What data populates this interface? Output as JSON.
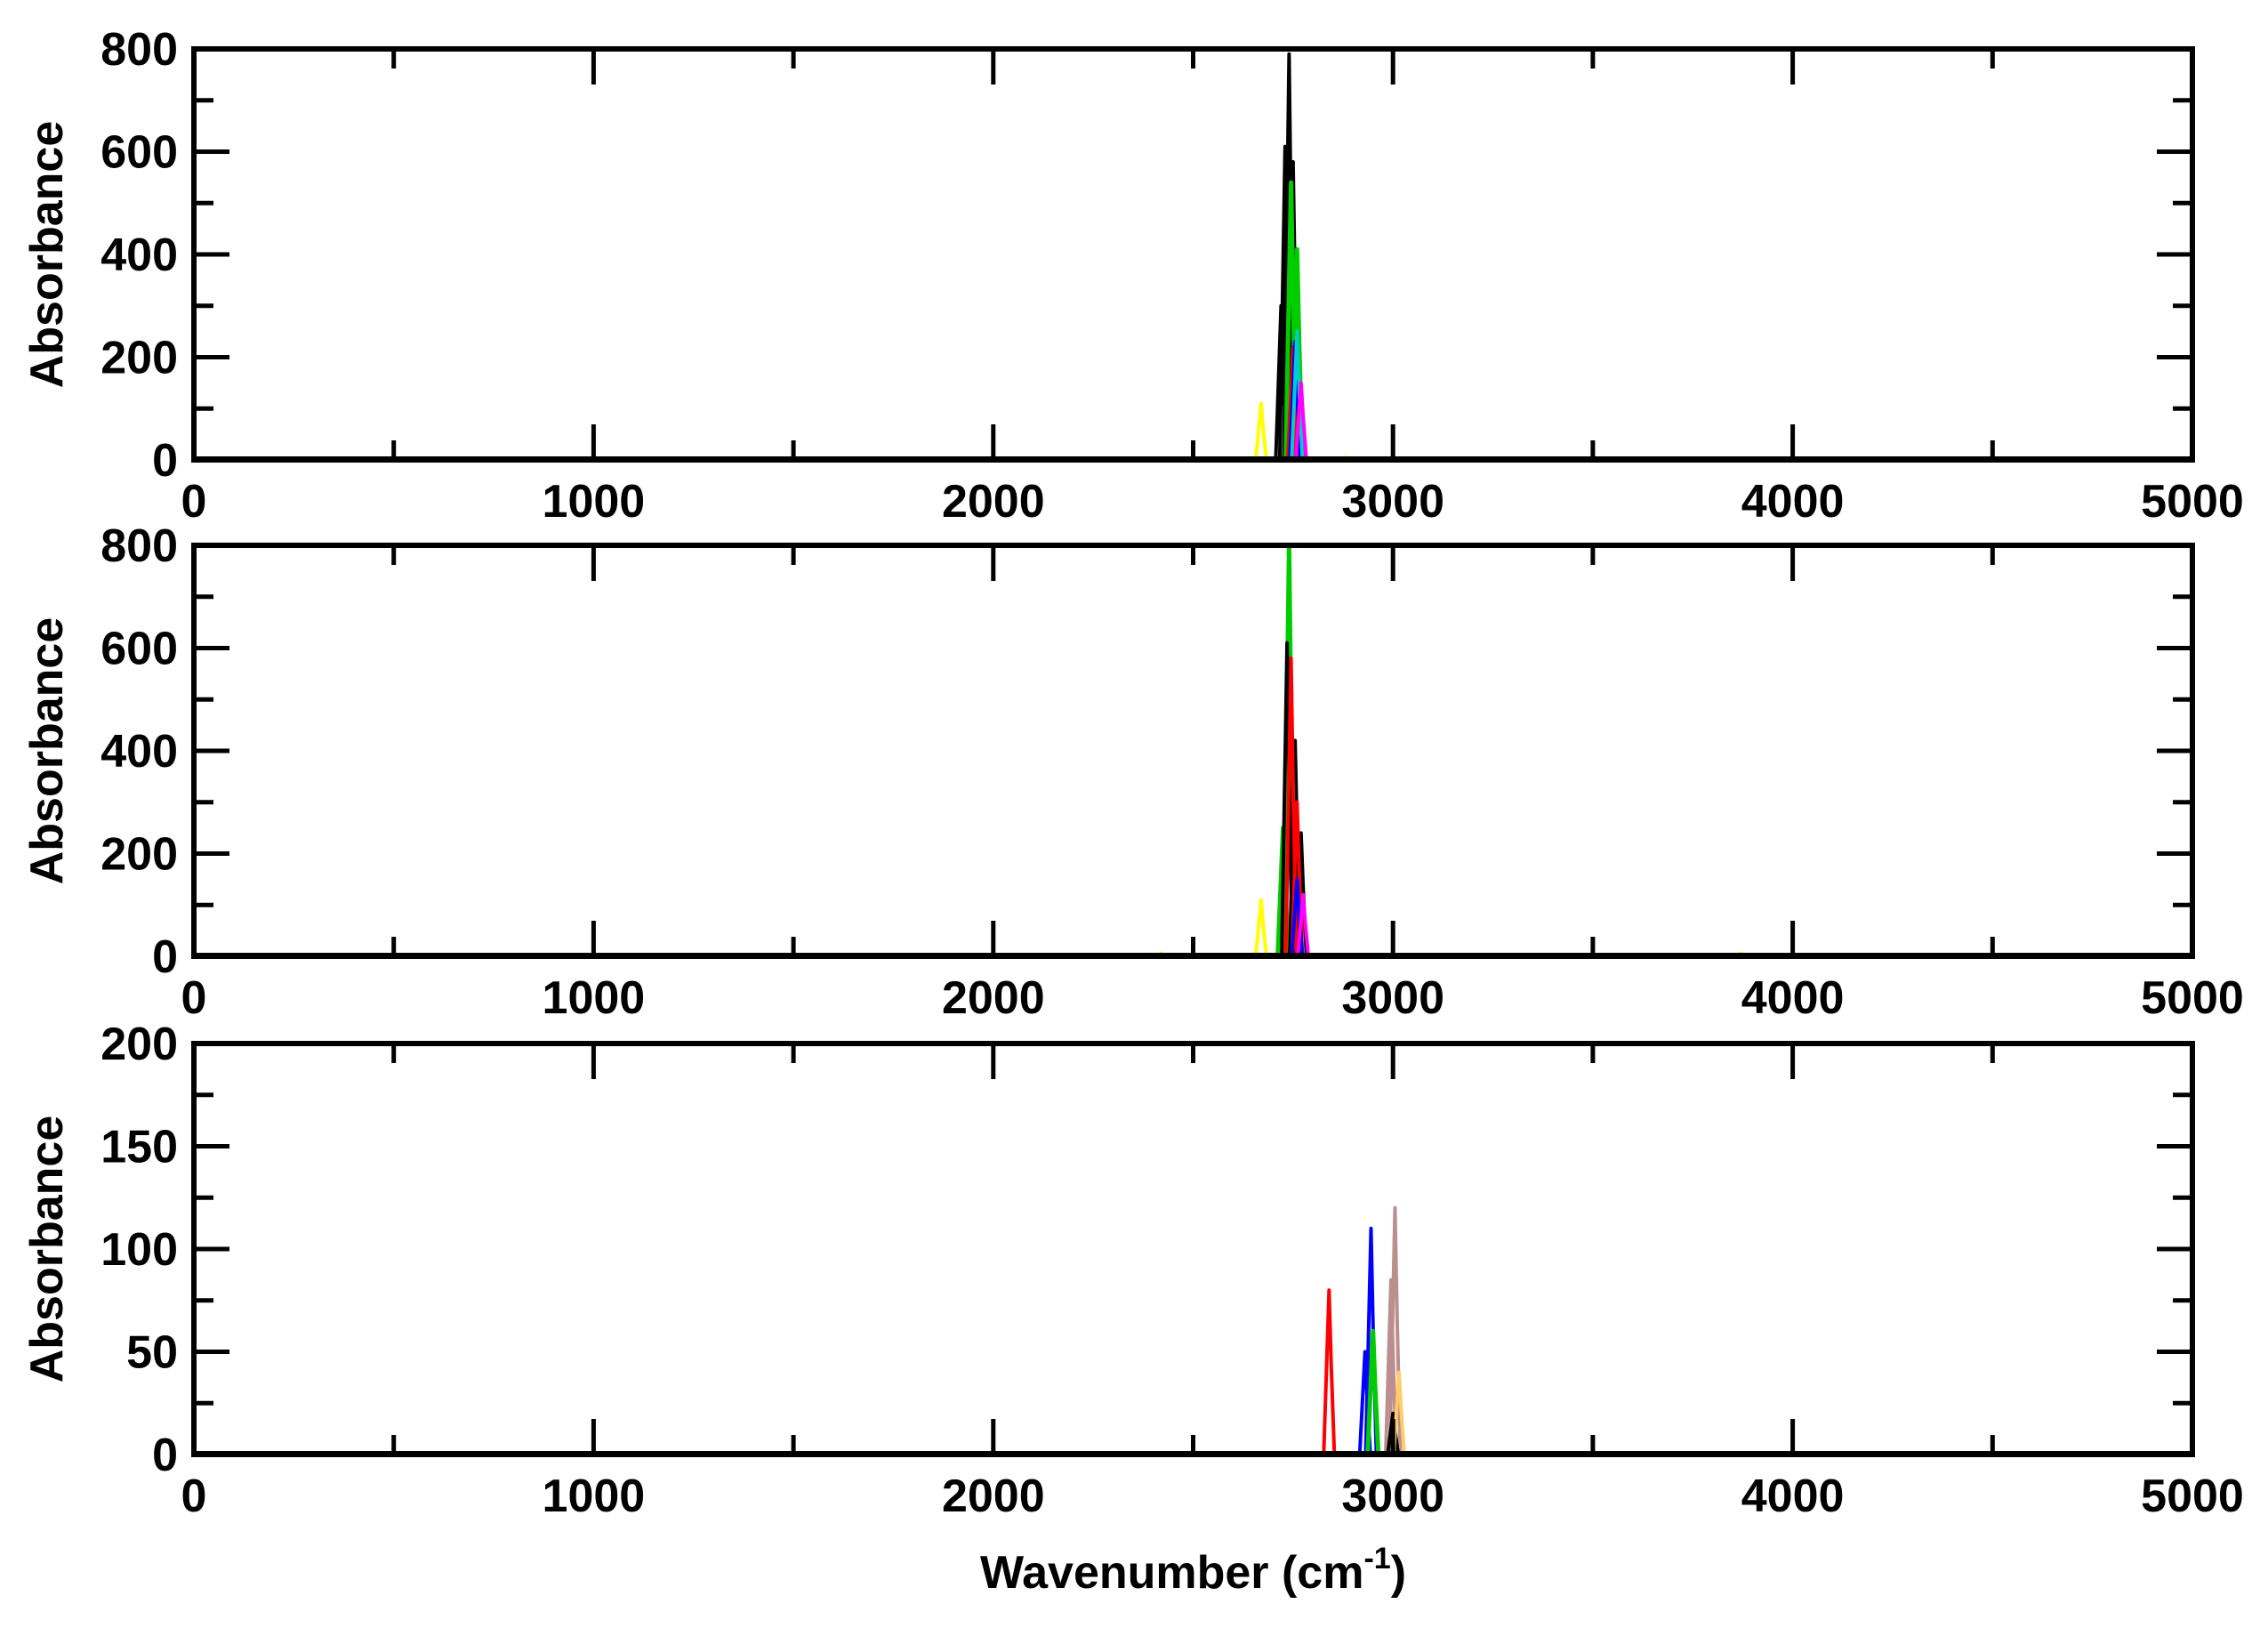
{
  "chart_data": [
    {
      "type": "line",
      "panel": "top",
      "ylabel": "Absorbance",
      "xlabel": "",
      "xlim": [
        0,
        5000
      ],
      "ylim": [
        0,
        800
      ],
      "x_ticks": [
        "0",
        "1000",
        "2000",
        "3000",
        "4000",
        "5000"
      ],
      "y_ticks": [
        "0",
        "200",
        "400",
        "600",
        "800"
      ],
      "grid": false,
      "series": [
        {
          "color": "#000000",
          "peaks": [
            [
              2720,
              300
            ],
            [
              2730,
              610
            ],
            [
              2740,
              790
            ],
            [
              2750,
              580
            ],
            [
              2765,
              200
            ]
          ]
        },
        {
          "color": "#00cc00",
          "peaks": [
            [
              2745,
              540
            ],
            [
              2760,
              410
            ]
          ]
        },
        {
          "color": "#ff0000",
          "peaks": [
            [
              2750,
              220
            ],
            [
              2765,
              120
            ]
          ]
        },
        {
          "color": "#0000ff",
          "peaks": [
            [
              2755,
              230
            ]
          ]
        },
        {
          "color": "#00cccc",
          "peaks": [
            [
              2760,
              250
            ]
          ]
        },
        {
          "color": "#ff00ff",
          "peaks": [
            [
              2770,
              150
            ]
          ]
        },
        {
          "color": "#ffff00",
          "peaks": [
            [
              2670,
              110
            ],
            [
              2880,
              5
            ],
            [
              3650,
              3
            ],
            [
              3870,
              3
            ],
            [
              4350,
              3
            ]
          ]
        }
      ]
    },
    {
      "type": "line",
      "panel": "middle",
      "ylabel": "Absorbance",
      "xlabel": "",
      "xlim": [
        0,
        5000
      ],
      "ylim": [
        0,
        800
      ],
      "x_ticks": [
        "0",
        "1000",
        "2000",
        "3000",
        "4000",
        "5000"
      ],
      "y_ticks": [
        "0",
        "200",
        "400",
        "600",
        "800"
      ],
      "grid": false,
      "series": [
        {
          "color": "#00cc00",
          "peaks": [
            [
              2725,
              250
            ],
            [
              2740,
              800
            ],
            [
              2755,
              200
            ]
          ]
        },
        {
          "color": "#000000",
          "peaks": [
            [
              2735,
              610
            ],
            [
              2755,
              420
            ],
            [
              2770,
              240
            ]
          ]
        },
        {
          "color": "#ff0000",
          "peaks": [
            [
              2745,
              580
            ],
            [
              2760,
              300
            ]
          ]
        },
        {
          "color": "#0000ff",
          "peaks": [
            [
              2760,
              150
            ]
          ]
        },
        {
          "color": "#ff00ff",
          "peaks": [
            [
              2775,
              120
            ]
          ]
        },
        {
          "color": "#ffff00",
          "peaks": [
            [
              2670,
              110
            ],
            [
              2420,
              6
            ],
            [
              3870,
              6
            ]
          ]
        }
      ]
    },
    {
      "type": "line",
      "panel": "bottom",
      "ylabel": "Absorbance",
      "xlabel": "Wavenumber (cm⁻¹)",
      "xlim": [
        0,
        5000
      ],
      "ylim": [
        0,
        200
      ],
      "x_ticks": [
        "0",
        "1000",
        "2000",
        "3000",
        "4000",
        "5000"
      ],
      "y_ticks": [
        "0",
        "50",
        "100",
        "150",
        "200"
      ],
      "grid": false,
      "series": [
        {
          "color": "#ff0000",
          "peaks": [
            [
              2840,
              80
            ]
          ]
        },
        {
          "color": "#0000ff",
          "peaks": [
            [
              2930,
              50
            ],
            [
              2945,
              110
            ]
          ]
        },
        {
          "color": "#00cc00",
          "peaks": [
            [
              2950,
              60
            ]
          ]
        },
        {
          "color": "#bc8f8f",
          "peaks": [
            [
              2995,
              85
            ],
            [
              3005,
              120
            ]
          ]
        },
        {
          "color": "#000000",
          "peaks": [
            [
              3000,
              20
            ]
          ]
        },
        {
          "color": "#ffcc66",
          "peaks": [
            [
              3015,
              40
            ]
          ]
        }
      ]
    }
  ]
}
